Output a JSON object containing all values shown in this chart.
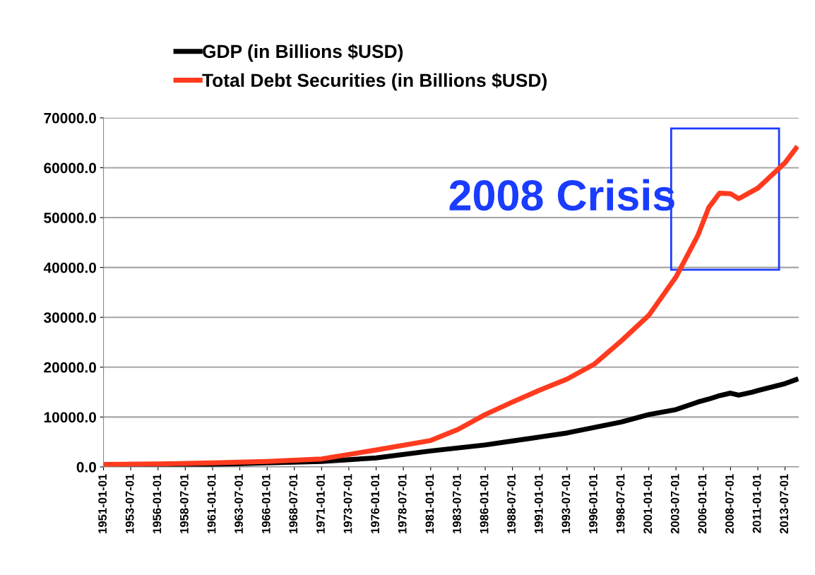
{
  "chart_data": {
    "type": "line",
    "x": [
      "1951-01-01",
      "1956-01-01",
      "1961-01-01",
      "1966-01-01",
      "1971-01-01",
      "1976-01-01",
      "1981-01-01",
      "1983-07-01",
      "1986-01-01",
      "1988-07-01",
      "1991-01-01",
      "1993-07-01",
      "1996-01-01",
      "1998-07-01",
      "2001-01-01",
      "2003-07-01",
      "2005-07-01",
      "2006-07-01",
      "2007-07-01",
      "2008-07-01",
      "2009-04-01",
      "2010-07-01",
      "2011-01-01",
      "2013-07-01",
      "2014-07-01"
    ],
    "series": [
      {
        "name": "GDP (in Billions $USD)",
        "color": "#000000",
        "values": [
          300,
          400,
          500,
          800,
          1100,
          1800,
          3200,
          3800,
          4400,
          5200,
          6000,
          6800,
          7900,
          9000,
          10500,
          11500,
          13000,
          13600,
          14300,
          14800,
          14400,
          15000,
          15300,
          16700,
          17500
        ]
      },
      {
        "name": "Total Debt Securities (in Billions $USD)",
        "color": "#ff3b1f",
        "values": [
          500,
          600,
          800,
          1100,
          1600,
          3400,
          5300,
          7500,
          10500,
          13000,
          15400,
          17600,
          20600,
          25300,
          30400,
          38100,
          46400,
          52000,
          54900,
          54800,
          53800,
          55300,
          55900,
          61000,
          63900
        ]
      }
    ],
    "xlim": [
      "1951-01-01",
      "2014-10-01"
    ],
    "xticks": [
      "1951-01-01",
      "1953-07-01",
      "1956-01-01",
      "1958-07-01",
      "1961-01-01",
      "1963-07-01",
      "1966-01-01",
      "1968-07-01",
      "1971-01-01",
      "1973-07-01",
      "1976-01-01",
      "1978-07-01",
      "1981-01-01",
      "1983-07-01",
      "1986-01-01",
      "1988-07-01",
      "1991-01-01",
      "1993-07-01",
      "1996-01-01",
      "1998-07-01",
      "2001-01-01",
      "2003-07-01",
      "2006-01-01",
      "2008-07-01",
      "2011-01-01",
      "2013-07-01"
    ],
    "ylim": [
      0,
      70000
    ],
    "yticks": [
      {
        "value": 0,
        "label": "0.0"
      },
      {
        "value": 10000,
        "label": "10000.0"
      },
      {
        "value": 20000,
        "label": "20000.0"
      },
      {
        "value": 30000,
        "label": "30000.0"
      },
      {
        "value": 40000,
        "label": "40000.0"
      },
      {
        "value": 50000,
        "label": "50000.0"
      },
      {
        "value": 60000,
        "label": "60000.0"
      },
      {
        "value": 70000,
        "label": "70000.0"
      }
    ],
    "annotations": [
      {
        "text": "2008 Crisis",
        "x": "2008-01-01",
        "y": 53700
      }
    ],
    "grid": "y",
    "legend": "top",
    "marker": "none",
    "line_style": "solid"
  }
}
